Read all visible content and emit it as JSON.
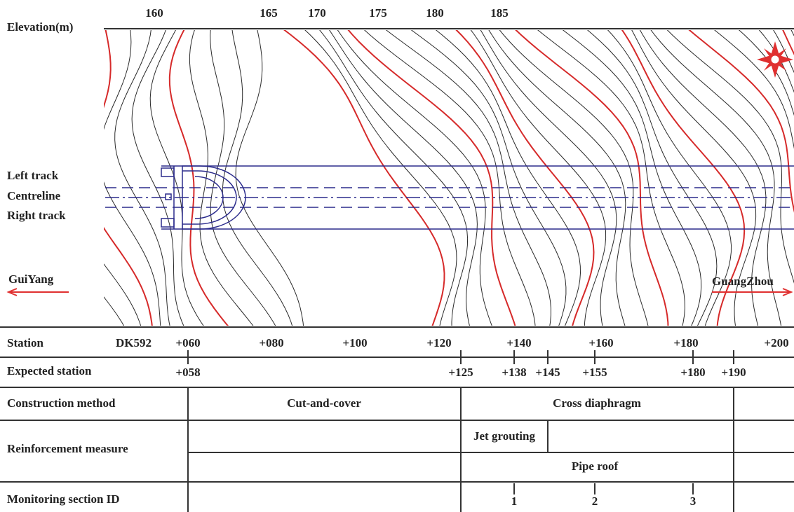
{
  "elevation": {
    "label": "Elevation(m)",
    "ticks": [
      "160",
      "165",
      "170",
      "175",
      "180",
      "185"
    ]
  },
  "tracks": {
    "left": "Left track",
    "centre": "Centreline",
    "right": "Right track"
  },
  "directions": {
    "west": "GuiYang",
    "east": "GuangZhou"
  },
  "table": {
    "station": {
      "label": "Station",
      "prefix": "DK592",
      "ticks": [
        "+060",
        "+080",
        "+100",
        "+120",
        "+140",
        "+160",
        "+180",
        "+200"
      ]
    },
    "expected_station": {
      "label": "Expected station",
      "ticks": [
        "+058",
        "+125",
        "+138",
        "+145",
        "+155",
        "+180",
        "+190"
      ]
    },
    "construction_method": {
      "label": "Construction method",
      "items": [
        "Cut-and-cover",
        "Cross diaphragm"
      ]
    },
    "reinforcement_measure": {
      "label": "Reinforcement measure",
      "items": [
        "Jet grouting",
        "Pipe roof"
      ]
    },
    "monitoring_section_id": {
      "label": "Monitoring section ID",
      "items": [
        "1",
        "2",
        "3"
      ]
    }
  }
}
